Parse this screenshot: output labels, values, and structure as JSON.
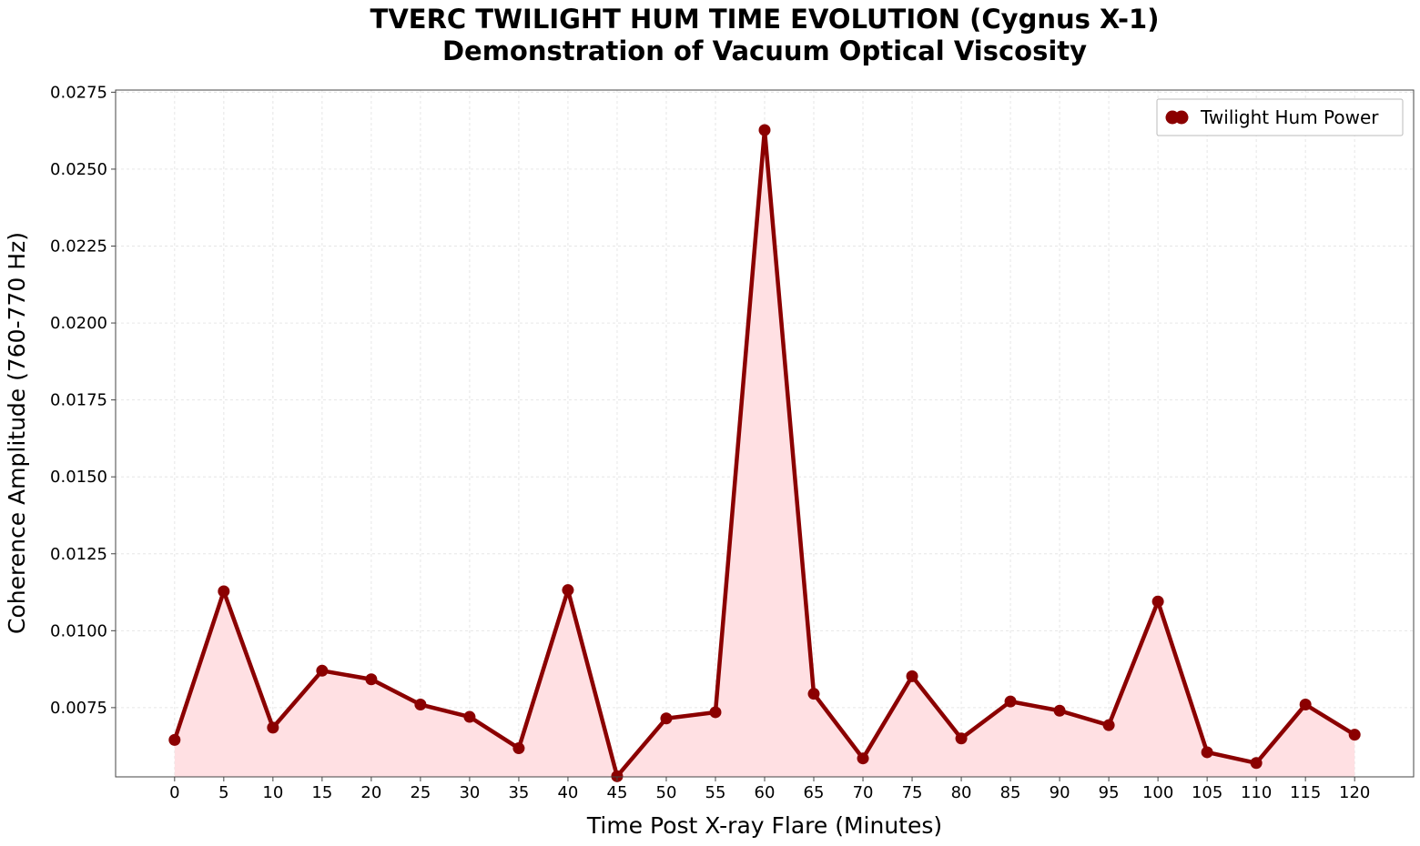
{
  "chart_data": {
    "type": "line",
    "title_lines": [
      "TVERC TWILIGHT HUM TIME EVOLUTION (Cygnus X-1)",
      "Demonstration of Vacuum Optical Viscosity"
    ],
    "xlabel": "Time Post X-ray Flare (Minutes)",
    "ylabel": "Coherence Amplitude (760-770 Hz)",
    "x": [
      0,
      5,
      10,
      15,
      20,
      25,
      30,
      35,
      40,
      45,
      50,
      55,
      60,
      65,
      70,
      75,
      80,
      85,
      90,
      95,
      100,
      105,
      110,
      115,
      120
    ],
    "x_tick_labels": [
      "0",
      "5",
      "10",
      "15",
      "20",
      "25",
      "30",
      "35",
      "40",
      "45",
      "50",
      "55",
      "60",
      "65",
      "70",
      "75",
      "80",
      "85",
      "90",
      "95",
      "100",
      "105",
      "110",
      "115",
      "120"
    ],
    "xlim": [
      -6,
      126
    ],
    "ylim": [
      0.00525,
      0.02757
    ],
    "y_ticks": [
      0.0075,
      0.01,
      0.0125,
      0.015,
      0.0175,
      0.02,
      0.0225,
      0.025,
      0.0275
    ],
    "y_tick_labels": [
      "0.0075",
      "0.0100",
      "0.0125",
      "0.0150",
      "0.0175",
      "0.0200",
      "0.0225",
      "0.0250",
      "0.0275"
    ],
    "series": [
      {
        "name": "Twilight Hum Power",
        "values": [
          0.00645,
          0.01128,
          0.00685,
          0.0087,
          0.00842,
          0.0076,
          0.0072,
          0.00618,
          0.01132,
          0.00527,
          0.00715,
          0.00735,
          0.02627,
          0.00795,
          0.00585,
          0.00852,
          0.0065,
          0.0077,
          0.0074,
          0.00693,
          0.01095,
          0.00605,
          0.0057,
          0.0076,
          0.00662
        ],
        "color": "#8b0000",
        "fill_color": "#ffe0e3"
      }
    ],
    "grid": true,
    "legend_position": "top-right"
  }
}
